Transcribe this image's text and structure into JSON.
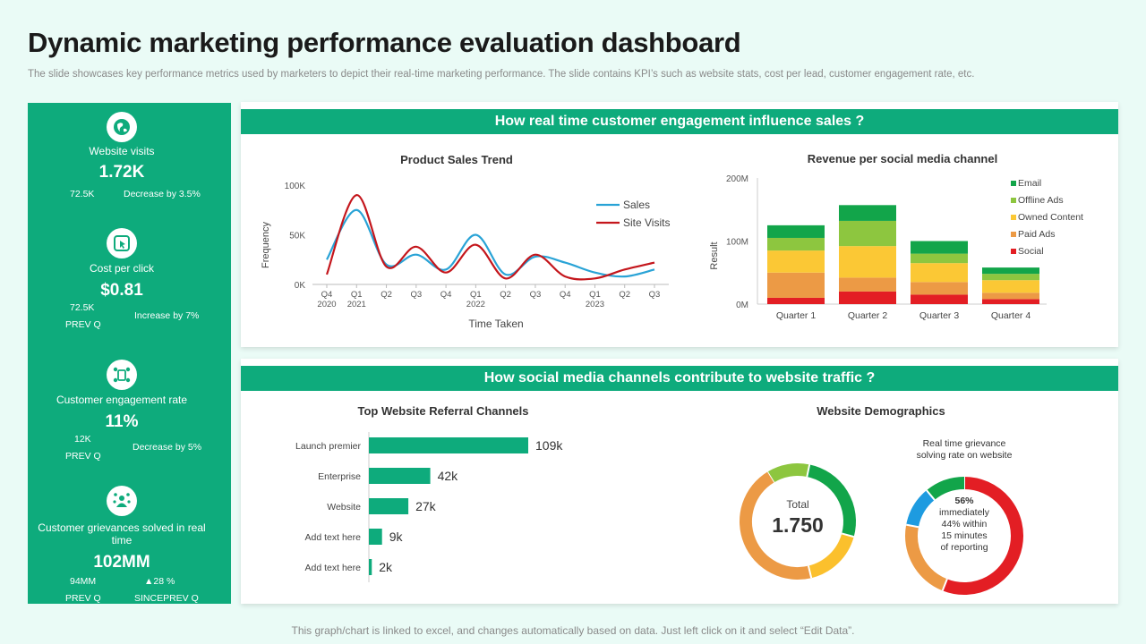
{
  "page": {
    "title": "Dynamic marketing performance evaluation dashboard",
    "subtitle": "The slide showcases key performance metrics used by marketers to depict their real-time marketing performance. The slide contains KPI’s such as website stats, cost per lead, customer engagement rate, etc.",
    "footer": "This graph/chart is linked to excel,  and changes automatically based on data. Just left click on it and select “Edit Data”.",
    "accent_color": "#0eab7c"
  },
  "kpis": [
    {
      "icon": "globe-icon",
      "label": "Website visits",
      "value": "1.72K",
      "prev_value": "72.5K",
      "change": "Decrease by 3.5%"
    },
    {
      "icon": "cursor-click-icon",
      "label": "Cost per click",
      "value": "$0.81",
      "prev_value": "72.5K",
      "prev_label": "PREV  Q",
      "change": "Increase by 7%"
    },
    {
      "icon": "engagement-icon",
      "label": "Customer engagement rate",
      "value": "11%",
      "prev_value": "12K",
      "prev_label": "PREV  Q",
      "change": "Decrease by 5%"
    },
    {
      "icon": "grievance-icon",
      "label": "Customer grievances solved in real time",
      "value": "102MM",
      "prev_value": "94MM",
      "prev_label": "PREV  Q",
      "change": "▲28 %",
      "change_label": "SINCEPREV  Q"
    }
  ],
  "sections": {
    "engagement": {
      "header": "How real time customer engagement influence sales ?"
    },
    "traffic": {
      "header": "How social media channels contribute to website traffic ?"
    }
  },
  "chart_data": [
    {
      "type": "line",
      "title": "Product  Sales Trend",
      "xlabel": "Time Taken",
      "ylabel": "Frequency",
      "ylim": [
        0,
        100000
      ],
      "y_ticks": [
        "0K",
        "50K",
        "100K"
      ],
      "categories": [
        "Q4",
        "Q1",
        "Q2",
        "Q3",
        "Q4",
        "Q1",
        "Q2",
        "Q3",
        "Q4",
        "Q1",
        "Q2",
        "Q3"
      ],
      "year_labels": [
        {
          "index": 0,
          "label": "2020"
        },
        {
          "index": 1,
          "label": "2021"
        },
        {
          "index": 5,
          "label": "2022"
        },
        {
          "index": 9,
          "label": "2023"
        }
      ],
      "series": [
        {
          "name": "Sales",
          "color": "#29a3d6",
          "values": [
            25000,
            75000,
            20000,
            30000,
            15000,
            50000,
            10000,
            28000,
            22000,
            12000,
            8000,
            15000
          ]
        },
        {
          "name": "Site Visits",
          "color": "#c4161c",
          "values": [
            10000,
            90000,
            18000,
            38000,
            12000,
            40000,
            6000,
            30000,
            8000,
            6000,
            15000,
            22000
          ]
        }
      ]
    },
    {
      "type": "bar",
      "stacked": true,
      "title": "Revenue per social media channel",
      "xlabel": "",
      "ylabel": "Result",
      "ylim": [
        0,
        200000000
      ],
      "y_ticks": [
        "0M",
        "100M",
        "200M"
      ],
      "categories": [
        "Quarter 1",
        "Quarter 2",
        "Quarter 3",
        "Quarter 4"
      ],
      "series": [
        {
          "name": "Social",
          "color": "#e31e24",
          "values": [
            10000000,
            20000000,
            15000000,
            8000000
          ]
        },
        {
          "name": "Paid Ads",
          "color": "#ec9a45",
          "values": [
            40000000,
            22000000,
            20000000,
            10000000
          ]
        },
        {
          "name": "Owned Content",
          "color": "#fbc835",
          "values": [
            35000000,
            50000000,
            30000000,
            20000000
          ]
        },
        {
          "name": "Offline Ads",
          "color": "#8dc63f",
          "values": [
            20000000,
            40000000,
            15000000,
            10000000
          ]
        },
        {
          "name": "Email",
          "color": "#12a54a",
          "values": [
            20000000,
            25000000,
            20000000,
            10000000
          ]
        }
      ],
      "legend_order": [
        "Email",
        "Offline Ads",
        "Owned Content",
        "Paid Ads",
        "Social"
      ]
    },
    {
      "type": "bar",
      "orientation": "horizontal",
      "title": "Top Website Referral Channels",
      "categories": [
        "Launch premier",
        "Enterprise",
        "Website",
        "Add text here",
        "Add text here"
      ],
      "values": [
        109000,
        42000,
        27000,
        9000,
        2000
      ],
      "value_labels": [
        "109k",
        "42k",
        "27k",
        "9k",
        "2k"
      ],
      "xlim": [
        0,
        120000
      ],
      "color": "#0eab7c"
    },
    {
      "type": "pie",
      "variant": "donut",
      "title": "Website Demographics",
      "center_label": "Total",
      "center_value": "1.750",
      "slices": [
        {
          "value": 12,
          "color": "#8dc63f"
        },
        {
          "value": 26,
          "color": "#12a54a"
        },
        {
          "value": 17,
          "color": "#fbc02d"
        },
        {
          "value": 45,
          "color": "#ec9a45"
        }
      ]
    },
    {
      "type": "pie",
      "variant": "donut",
      "title": "Real time grievance solving rate on website",
      "center_line1": "56%",
      "center_line2": "immediately",
      "center_line3": "44% within",
      "center_line4": "15 minutes",
      "center_line5": "of reporting",
      "slices": [
        {
          "value": 56,
          "color": "#e31e24"
        },
        {
          "value": 22,
          "color": "#ec9a45"
        },
        {
          "value": 11,
          "color": "#1e9be0"
        },
        {
          "value": 11,
          "color": "#12a54a"
        }
      ]
    }
  ]
}
